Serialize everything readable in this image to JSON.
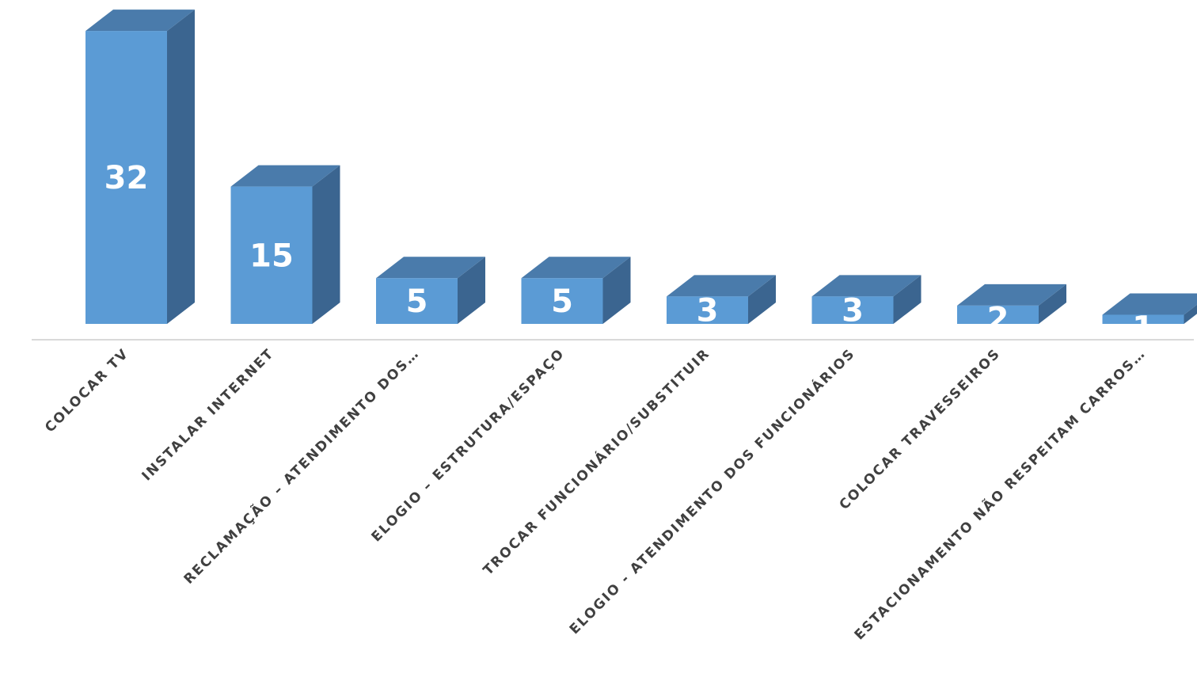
{
  "chart_data": {
    "type": "bar",
    "style": "3d-column",
    "categories": [
      "COLOCAR TV",
      "INSTALAR INTERNET",
      "RECLAMAÇÃO – ATENDIMENTO DOS…",
      "ELOGIO – ESTRUTURA/ESPAÇO",
      "TROCAR FUNCIONÁRIO/SUBSTITUIR",
      "ELOGIO - ATENDIMENTO DOS FUNCIONÁRIOS",
      "COLOCAR TRAVESSEIROS",
      "ESTACIONAMENTO NÃO RESPEITAM CARROS…"
    ],
    "values": [
      32,
      15,
      5,
      5,
      3,
      3,
      2,
      1
    ],
    "data_labels": [
      "32",
      "15",
      "5",
      "5",
      "3",
      "3",
      "2",
      "1"
    ],
    "ylim": [
      0,
      32
    ],
    "grid": false,
    "colors": {
      "front": "#5b9bd5",
      "top": "#4a7bab",
      "side": "#3b6590",
      "axis": "#d9d9d9",
      "value_text": "#ffffff",
      "category_text": "#404040"
    }
  }
}
